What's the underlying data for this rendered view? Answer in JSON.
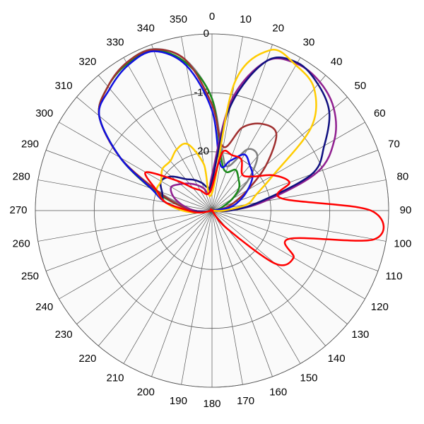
{
  "chart_data": {
    "type": "polar",
    "x": [
      0,
      10,
      20,
      30,
      40,
      50,
      60,
      70,
      80,
      90,
      100,
      110,
      120,
      130,
      140,
      150,
      160,
      170,
      180,
      190,
      200,
      210,
      220,
      230,
      240,
      250,
      260,
      270,
      280,
      290,
      300,
      310,
      320,
      330,
      340,
      350
    ],
    "xticks": [
      0,
      10,
      20,
      30,
      40,
      50,
      60,
      70,
      80,
      90,
      100,
      110,
      120,
      130,
      140,
      150,
      160,
      170,
      180,
      190,
      200,
      210,
      220,
      230,
      240,
      250,
      260,
      270,
      280,
      290,
      300,
      310,
      320,
      330,
      340,
      350
    ],
    "ylim": [
      -30,
      0
    ],
    "yticks": [
      -20,
      -10,
      0
    ],
    "grid": true,
    "series": [
      {
        "color": "#808080",
        "values": [
          -11,
          -20,
          -22,
          -18,
          -18,
          -22,
          -26,
          -28,
          -29,
          -30,
          -30,
          -30,
          -30,
          -30,
          -30,
          -30,
          -30,
          -30,
          -30,
          -30,
          -30,
          -30,
          -30,
          -30,
          -30,
          -30,
          -29,
          -27,
          -25,
          -20,
          -12,
          -5,
          -2.5,
          -1,
          -0.8,
          -4
        ]
      },
      {
        "color": "#1a8a1a",
        "values": [
          -11,
          -21,
          -23,
          -22,
          -23,
          -24,
          -26,
          -28,
          -29,
          -30,
          -30,
          -30,
          -30,
          -30,
          -30,
          -30,
          -30,
          -30,
          -30,
          -30,
          -30,
          -30,
          -30,
          -30,
          -30,
          -30,
          -29,
          -27,
          -24,
          -19,
          -12,
          -5,
          -2.5,
          -1.2,
          -1,
          -4.5
        ]
      },
      {
        "color": "#a03030",
        "values": [
          -12,
          -19,
          -15,
          -13,
          -13,
          -18,
          -23,
          -26,
          -28,
          -30,
          -30,
          -30,
          -30,
          -30,
          -30,
          -30,
          -30,
          -30,
          -30,
          -30,
          -30,
          -30,
          -30,
          -30,
          -30,
          -30,
          -29,
          -27,
          -24,
          -20,
          -12,
          -5,
          -2.5,
          -1,
          -0.9,
          -4
        ]
      },
      {
        "color": "#1010e0",
        "values": [
          -13,
          -22,
          -21,
          -19,
          -20,
          -21,
          -23,
          -25,
          -27,
          -30,
          -30,
          -30,
          -30,
          -30,
          -30,
          -30,
          -30,
          -30,
          -30,
          -30,
          -30,
          -30,
          -30,
          -30,
          -30,
          -30,
          -29,
          -26,
          -22,
          -19,
          -12,
          -5,
          -3,
          -1.5,
          -1.2,
          -5
        ]
      },
      {
        "color": "#902090",
        "values": [
          -24,
          -11,
          -3,
          -1.2,
          -1.5,
          -3,
          -6,
          -11,
          -21,
          -27,
          -30,
          -30,
          -30,
          -30,
          -30,
          -30,
          -30,
          -30,
          -30,
          -30,
          -30,
          -30,
          -30,
          -30,
          -30,
          -30,
          -29,
          -27,
          -25,
          -23,
          -22,
          -23,
          -24,
          -25,
          -26,
          -27
        ]
      },
      {
        "color": "#101080",
        "values": [
          -25,
          -12,
          -3,
          -1,
          -2,
          -4,
          -8,
          -12,
          -22,
          -27,
          -30,
          -30,
          -30,
          -30,
          -30,
          -30,
          -30,
          -30,
          -30,
          -30,
          -30,
          -30,
          -30,
          -30,
          -30,
          -30,
          -29,
          -26,
          -22,
          -21,
          -20,
          -21,
          -23,
          -24,
          -25,
          -26
        ]
      },
      {
        "color": "#ffcc00",
        "values": [
          -27,
          -8,
          -1,
          -1.5,
          -3,
          -8,
          -18,
          -22,
          -24,
          -28,
          -30,
          -30,
          -30,
          -30,
          -30,
          -30,
          -30,
          -30,
          -30,
          -30,
          -30,
          -30,
          -30,
          -30,
          -30,
          -30,
          -28,
          -25,
          -22,
          -20,
          -20,
          -19,
          -19,
          -18,
          -18,
          -22
        ]
      },
      {
        "color": "#ff0000",
        "values": [
          -26,
          -20,
          -20,
          -20,
          -22,
          -21,
          -18,
          -16,
          -18,
          -3,
          -2,
          -16,
          -14,
          -16,
          -26,
          -30,
          -30,
          -30,
          -30,
          -30,
          -30,
          -30,
          -30,
          -30,
          -30,
          -30,
          -28,
          -26,
          -22,
          -20,
          -17,
          -22,
          -25,
          -26,
          -27,
          -27
        ]
      }
    ]
  }
}
